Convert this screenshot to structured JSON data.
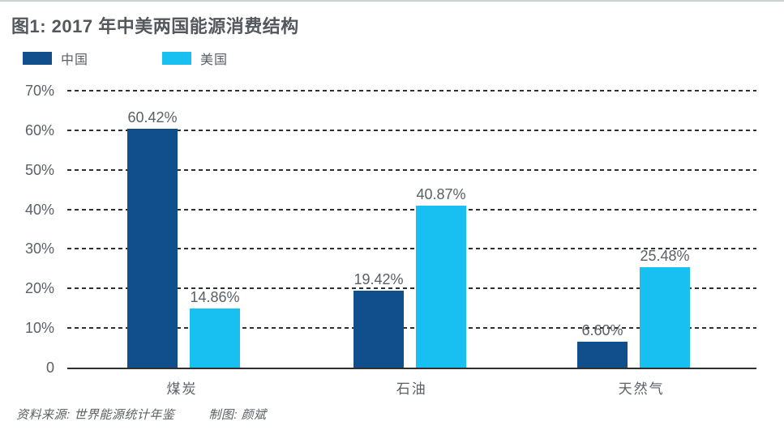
{
  "header": {
    "title": "图1: 2017 年中美两国能源消费结构"
  },
  "footer": {
    "source": "资料来源: 世界能源统计年鉴",
    "credit": "制图: 颜斌"
  },
  "colors": {
    "china_bar": "#114e8c",
    "us_bar": "#17c0f0",
    "text_gray": "#5a6066",
    "title_gray": "#54585c",
    "gridline": "#2f2f2f",
    "top_rule": "#cdd1d4"
  },
  "chart_data": {
    "type": "bar",
    "title": "图1: 2017 年中美两国能源消费结构",
    "categories": [
      "煤炭",
      "石油",
      "天然气"
    ],
    "series": [
      {
        "name": "中国",
        "color": "#114e8c",
        "values": [
          60.42,
          19.42,
          6.6
        ],
        "value_labels": [
          "60.42%",
          "19.42%",
          "6.60%"
        ]
      },
      {
        "name": "美国",
        "color": "#17c0f0",
        "values": [
          14.86,
          40.87,
          25.48
        ],
        "value_labels": [
          "14.86%",
          "40.87%",
          "25.48%"
        ]
      }
    ],
    "xlabel": "",
    "ylabel": "",
    "ylim": [
      0,
      70
    ],
    "y_ticks": [
      {
        "value": 70,
        "label": "70%"
      },
      {
        "value": 60,
        "label": "60%"
      },
      {
        "value": 50,
        "label": "50%"
      },
      {
        "value": 40,
        "label": "40%"
      },
      {
        "value": 30,
        "label": "30%"
      },
      {
        "value": 20,
        "label": "20%"
      },
      {
        "value": 10,
        "label": "10%"
      },
      {
        "value": 0,
        "label": "0"
      }
    ],
    "grid": "horizontal-dashed",
    "legend_position": "top-left",
    "baseline": "solid"
  }
}
